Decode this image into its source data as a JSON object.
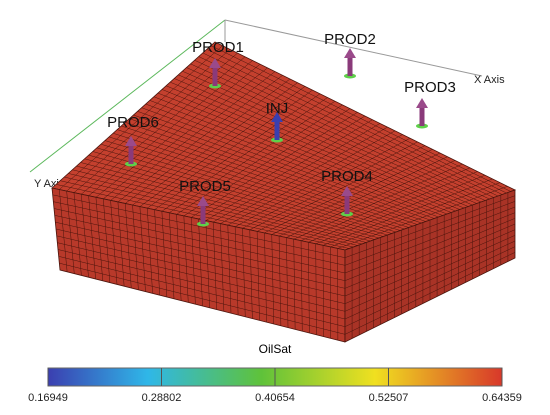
{
  "axes": {
    "x": "X Axis",
    "y": "Y Axis"
  },
  "wells": [
    {
      "label": "PROD1"
    },
    {
      "label": "PROD2"
    },
    {
      "label": "PROD3"
    },
    {
      "label": "INJ"
    },
    {
      "label": "PROD6"
    },
    {
      "label": "PROD5"
    },
    {
      "label": "PROD4"
    }
  ],
  "colorbar": {
    "title": "OilSat",
    "range": [
      0.16949,
      0.64359
    ],
    "ticks": [
      0.16949,
      0.28802,
      0.40654,
      0.52507,
      0.64359
    ]
  }
}
